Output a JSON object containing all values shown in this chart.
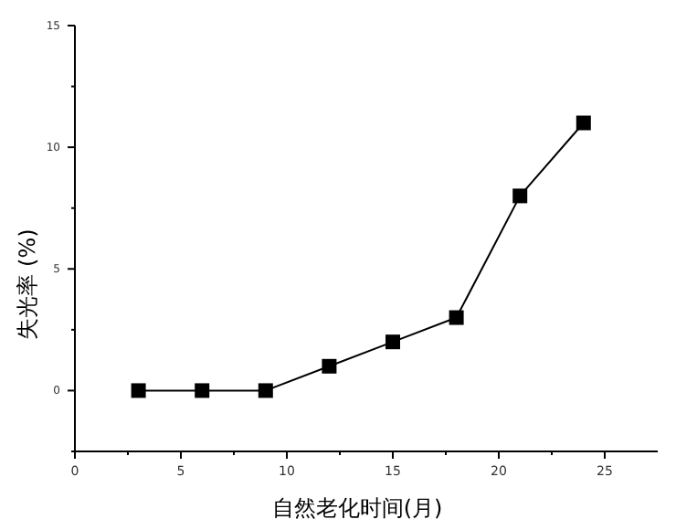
{
  "chart_data": {
    "type": "line",
    "xlabel": "自然老化时间(月)",
    "ylabel": "失光率 (%)",
    "xlim": [
      0,
      27.5
    ],
    "ylim": [
      -2.5,
      15
    ],
    "xticks": [
      0,
      {
        "value": 2.5,
        "label": null
      },
      5,
      {
        "value": 7.5,
        "label": null
      },
      10,
      {
        "value": 12.5,
        "label": null
      },
      15,
      {
        "value": 17.5,
        "label": null
      },
      20,
      {
        "value": 22.5,
        "label": null
      },
      25
    ],
    "yticks": [
      {
        "value": -2.5,
        "label": null
      },
      0,
      {
        "value": 2.5,
        "label": null
      },
      5,
      {
        "value": 7.5,
        "label": null
      },
      10,
      {
        "value": 12.5,
        "label": null
      },
      15
    ],
    "x": [
      3,
      6,
      9,
      12,
      15,
      18,
      21,
      24
    ],
    "series": [
      {
        "color": "#000000",
        "values": [
          0,
          0,
          0,
          1,
          2,
          3,
          8,
          11
        ]
      }
    ],
    "marker": "square",
    "line_style": "solid"
  }
}
